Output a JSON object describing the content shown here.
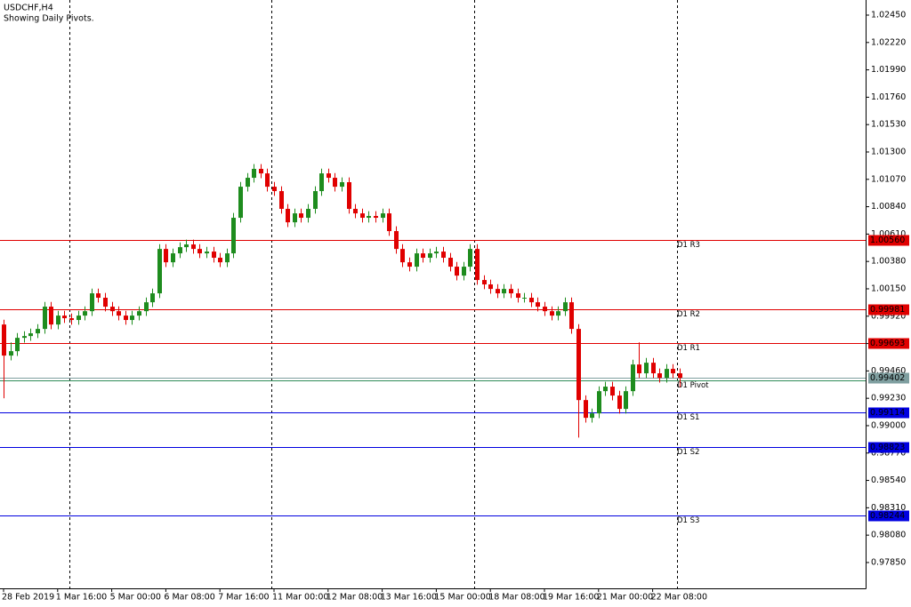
{
  "chart_data": {
    "type": "candlestick",
    "title": "USDCHF,H4",
    "subtitle": "Showing Daily Pivots.",
    "categories": [
      "28 Feb 2019",
      null,
      null,
      null,
      null,
      null,
      null,
      null,
      "1 Mar 16:00",
      null,
      null,
      null,
      null,
      null,
      null,
      null,
      "5 Mar 00:00",
      null,
      null,
      null,
      null,
      null,
      null,
      null,
      "6 Mar 08:00",
      null,
      null,
      null,
      null,
      null,
      null,
      null,
      "7 Mar 16:00",
      null,
      null,
      null,
      null,
      null,
      null,
      null,
      "11 Mar 00:00",
      null,
      null,
      null,
      null,
      null,
      null,
      null,
      "12 Mar 08:00",
      null,
      null,
      null,
      null,
      null,
      null,
      null,
      "13 Mar 16:00",
      null,
      null,
      null,
      null,
      null,
      null,
      null,
      "15 Mar 00:00",
      null,
      null,
      null,
      null,
      null,
      null,
      null,
      "18 Mar 08:00",
      null,
      null,
      null,
      null,
      null,
      null,
      null,
      "19 Mar 16:00",
      null,
      null,
      null,
      null,
      null,
      null,
      null,
      "21 Mar 00:00",
      null,
      null,
      null,
      null,
      null,
      null,
      null,
      "22 Mar 08:00",
      null,
      null,
      null,
      null
    ],
    "open": [
      0.9985,
      0.99589,
      0.99626,
      0.99738,
      0.99753,
      0.99776,
      0.99813,
      1.0,
      0.9985,
      0.99925,
      0.99903,
      0.99888,
      0.99925,
      0.99962,
      1.00112,
      1.00075,
      1.0,
      0.99962,
      0.99925,
      0.99888,
      0.99925,
      0.99962,
      1.00037,
      1.00112,
      1.00485,
      1.00373,
      1.00448,
      1.005,
      1.00523,
      1.00485,
      1.00448,
      1.00463,
      1.00411,
      1.00373,
      1.00448,
      1.00747,
      1.01008,
      1.01083,
      1.01158,
      1.0112,
      1.01008,
      1.00971,
      1.00822,
      1.00709,
      1.00784,
      1.00747,
      1.00822,
      1.00971,
      1.0112,
      1.01083,
      1.01008,
      1.01046,
      1.00822,
      1.00784,
      1.00747,
      1.00762,
      1.00747,
      1.00784,
      1.00635,
      1.00485,
      1.00373,
      1.00336,
      1.00448,
      1.00411,
      1.00448,
      1.00463,
      1.00411,
      1.00336,
      1.00261,
      1.00336,
      1.00485,
      1.00224,
      1.00187,
      1.00149,
      1.00112,
      1.00149,
      1.00112,
      1.00075,
      1.00075,
      1.00037,
      1.0,
      0.99962,
      0.99925,
      0.99962,
      1.00037,
      0.99813,
      0.99215,
      0.99066,
      0.99103,
      0.9929,
      0.99328,
      0.99253,
      0.99141,
      0.9929,
      0.99514,
      0.9944,
      0.99529,
      0.9944,
      0.99402,
      0.99477,
      0.9944
    ],
    "high": [
      0.9989,
      0.997,
      0.99778,
      0.99793,
      0.99816,
      0.99853,
      1.0004,
      1.0004,
      0.99965,
      0.99965,
      0.99943,
      0.99965,
      1.00002,
      1.00152,
      1.00152,
      1.00115,
      1.0004,
      1.00002,
      0.99965,
      0.99965,
      1.00002,
      1.00077,
      1.00152,
      1.00525,
      1.00525,
      1.00488,
      1.0054,
      1.00563,
      1.00563,
      1.00525,
      1.00503,
      1.00503,
      1.00451,
      1.00488,
      1.00787,
      1.01048,
      1.01123,
      1.01198,
      1.01198,
      1.0116,
      1.01048,
      1.01011,
      1.00862,
      1.00824,
      1.00824,
      1.00862,
      1.01011,
      1.0116,
      1.0116,
      1.01123,
      1.01086,
      1.01086,
      1.00862,
      1.00824,
      1.00802,
      1.00802,
      1.00824,
      1.00824,
      1.00675,
      1.00525,
      1.00413,
      1.00488,
      1.00488,
      1.00488,
      1.00503,
      1.00503,
      1.00451,
      1.00376,
      1.00376,
      1.00525,
      1.00525,
      1.00264,
      1.00227,
      1.00189,
      1.00189,
      1.00189,
      1.00152,
      1.00115,
      1.00115,
      1.00077,
      1.0004,
      1.00002,
      1.00002,
      1.00077,
      1.00077,
      0.99853,
      0.99255,
      0.99143,
      0.9933,
      0.99368,
      0.99368,
      0.99293,
      0.9933,
      0.99554,
      0.997,
      0.99569,
      0.99569,
      0.9948,
      0.99517,
      0.99517,
      0.9948
    ],
    "low": [
      0.9923,
      0.99549,
      0.99586,
      0.99698,
      0.99713,
      0.99736,
      0.99773,
      0.9981,
      0.9981,
      0.99863,
      0.99848,
      0.99848,
      0.99885,
      0.99922,
      1.00035,
      0.9996,
      0.99922,
      0.99885,
      0.99848,
      0.99848,
      0.99885,
      0.99922,
      0.99997,
      1.00072,
      1.00333,
      1.00333,
      1.00408,
      1.0046,
      1.00445,
      1.00408,
      1.00408,
      1.00371,
      1.00333,
      1.00333,
      1.00408,
      1.00707,
      1.00968,
      1.01043,
      1.0108,
      1.00968,
      1.00931,
      1.00782,
      1.00669,
      1.00669,
      1.00707,
      1.00707,
      1.00782,
      1.00931,
      1.01043,
      1.00968,
      1.00968,
      1.00782,
      1.00744,
      1.00707,
      1.00707,
      1.00707,
      1.00707,
      1.00595,
      1.00445,
      1.00333,
      1.00296,
      1.00296,
      1.00371,
      1.00371,
      1.00408,
      1.00371,
      1.00296,
      1.00221,
      1.00221,
      1.00296,
      1.00184,
      1.00147,
      1.00109,
      1.00072,
      1.00072,
      1.00072,
      1.00035,
      1.00035,
      0.99997,
      0.9996,
      0.99922,
      0.99885,
      0.99885,
      0.99922,
      0.99773,
      0.989,
      0.99026,
      0.99026,
      0.99063,
      0.9925,
      0.99213,
      0.99101,
      0.99101,
      0.9925,
      0.994,
      0.994,
      0.994,
      0.99362,
      0.99362,
      0.994,
      0.99325
    ],
    "close": [
      0.99589,
      0.99626,
      0.99738,
      0.99753,
      0.99776,
      0.99813,
      1.0,
      0.9985,
      0.99925,
      0.99903,
      0.99888,
      0.99925,
      0.99962,
      1.00112,
      1.00075,
      1.0,
      0.99962,
      0.99925,
      0.99888,
      0.99925,
      0.99962,
      1.00037,
      1.00112,
      1.00485,
      1.00373,
      1.00448,
      1.005,
      1.00523,
      1.00485,
      1.00448,
      1.00463,
      1.00411,
      1.00373,
      1.00448,
      1.00747,
      1.01008,
      1.01083,
      1.01158,
      1.0112,
      1.01008,
      1.00971,
      1.00822,
      1.00709,
      1.00784,
      1.00747,
      1.00822,
      1.00971,
      1.0112,
      1.01083,
      1.01008,
      1.01046,
      1.00822,
      1.00784,
      1.00747,
      1.00762,
      1.00747,
      1.00784,
      1.00635,
      1.00485,
      1.00373,
      1.00336,
      1.00448,
      1.00411,
      1.00448,
      1.00463,
      1.00411,
      1.00336,
      1.00261,
      1.00336,
      1.00485,
      1.00224,
      1.00187,
      1.00149,
      1.00112,
      1.00149,
      1.00112,
      1.00075,
      1.00075,
      1.00037,
      1.0,
      0.99962,
      0.99925,
      0.99962,
      1.00037,
      0.99813,
      0.99215,
      0.99066,
      0.99103,
      0.9929,
      0.99328,
      0.99253,
      0.99141,
      0.9929,
      0.99514,
      0.9944,
      0.99529,
      0.9944,
      0.99402,
      0.99477,
      0.9944,
      0.99402
    ],
    "up_color": "#1e8c1e",
    "down_color": "#e00000",
    "ylim": [
      0.97633,
      1.02577
    ],
    "yticks": [
      {
        "value": 1.0245,
        "label": "1.02450"
      },
      {
        "value": 1.0222,
        "label": "1.02220"
      },
      {
        "value": 1.0199,
        "label": "1.01990"
      },
      {
        "value": 1.0176,
        "label": "1.01760"
      },
      {
        "value": 1.0153,
        "label": "1.01530"
      },
      {
        "value": 1.013,
        "label": "1.01300"
      },
      {
        "value": 1.0107,
        "label": "1.01070"
      },
      {
        "value": 1.0084,
        "label": "1.00840"
      },
      {
        "value": 1.0061,
        "label": "1.00610"
      },
      {
        "value": 1.0038,
        "label": "1.00380"
      },
      {
        "value": 1.0015,
        "label": "1.00150"
      },
      {
        "value": 0.9992,
        "label": "0.99920"
      },
      {
        "value": 0.9969,
        "label": "0.99690"
      },
      {
        "value": 0.9946,
        "label": "0.99460"
      },
      {
        "value": 0.9923,
        "label": "0.99230"
      },
      {
        "value": 0.99,
        "label": "0.99000"
      },
      {
        "value": 0.9877,
        "label": "0.98770"
      },
      {
        "value": 0.9854,
        "label": "0.98540"
      },
      {
        "value": 0.9831,
        "label": "0.98310"
      },
      {
        "value": 0.9808,
        "label": "0.98080"
      },
      {
        "value": 0.9785,
        "label": "0.97850"
      }
    ],
    "levels": [
      {
        "name": "D1 R3",
        "value": 1.0056,
        "value_label": "1.00560",
        "color": "#e00000"
      },
      {
        "name": "D1 R2",
        "value": 0.99981,
        "value_label": "0.99981",
        "color": "#e00000"
      },
      {
        "name": "D1 R1",
        "value": 0.99693,
        "value_label": "0.99693",
        "color": "#e00000"
      },
      {
        "name": "D1 S1",
        "value": 0.99114,
        "value_label": "0.99114",
        "color": "#0000e0"
      },
      {
        "name": "D1 S2",
        "value": 0.98823,
        "value_label": "0.98823",
        "color": "#0000e0"
      },
      {
        "name": "D1 S3",
        "value": 0.98244,
        "value_label": "0.98244",
        "color": "#0000e0"
      }
    ],
    "pivot": {
      "name": "D1 Pivot",
      "value": 0.9938,
      "color": "#2e8b57"
    },
    "last_price": {
      "value": 0.99402,
      "label": "0.99402",
      "color": "#7f9fa0"
    }
  }
}
